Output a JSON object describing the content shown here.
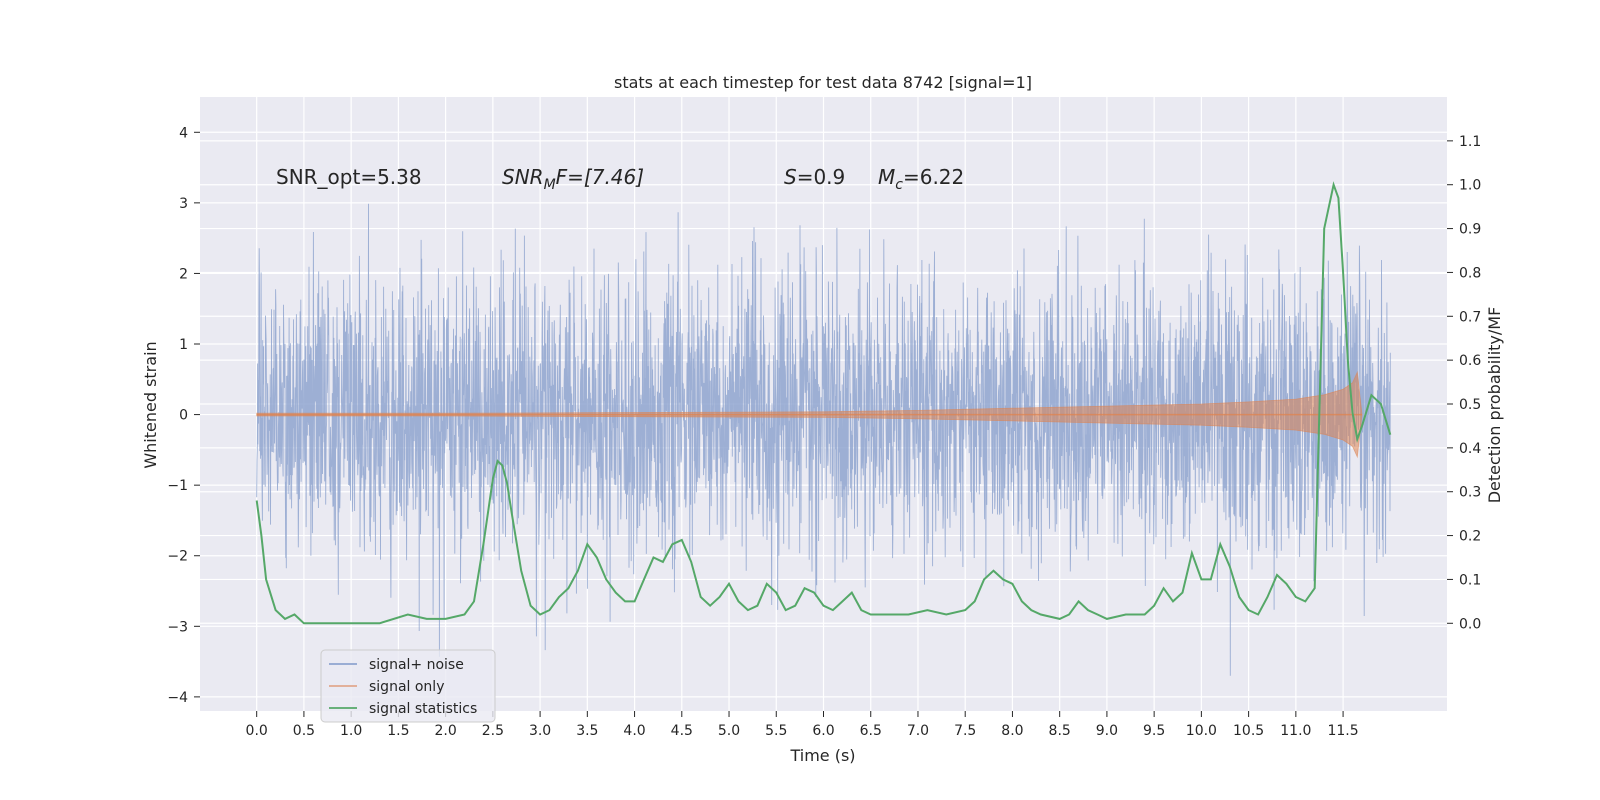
{
  "chart_data": {
    "type": "line",
    "title": "stats at each timestep for test data 8742 [signal=1]",
    "xlabel": "Time (s)",
    "ylabel_left": "Whitened strain",
    "ylabel_right": "Detection probability/MF",
    "xlim": [
      -0.6,
      12.6
    ],
    "ylim_left": [
      -4.2,
      4.5
    ],
    "ylim_right": [
      -0.2,
      1.2
    ],
    "x_ticks": [
      0.0,
      0.5,
      1.0,
      1.5,
      2.0,
      2.5,
      3.0,
      3.5,
      4.0,
      4.5,
      5.0,
      5.5,
      6.0,
      6.5,
      7.0,
      7.5,
      8.0,
      8.5,
      9.0,
      9.5,
      10.0,
      10.5,
      11.0,
      11.5
    ],
    "x_tick_labels": [
      "0.0",
      "0.5",
      "1.0",
      "1.5",
      "2.0",
      "2.5",
      "3.0",
      "3.5",
      "4.0",
      "4.5",
      "5.0",
      "5.5",
      "6.0",
      "6.5",
      "7.0",
      "7.5",
      "8.0",
      "8.5",
      "9.0",
      "9.5",
      "10.0",
      "10.5",
      "11.0",
      "11.5"
    ],
    "y_left_ticks": [
      4,
      3,
      2,
      1,
      0,
      -1,
      -2,
      -3,
      -4
    ],
    "y_left_tick_labels": [
      "4",
      "3",
      "2",
      "1",
      "0",
      "−1",
      "−2",
      "−3",
      "−4"
    ],
    "y_right_ticks": [
      1.1,
      1.0,
      0.9,
      0.8,
      0.7,
      0.6,
      0.5,
      0.4,
      0.3,
      0.2,
      0.1,
      0.0
    ],
    "y_right_tick_labels": [
      "1.1",
      "1.0",
      "0.9",
      "0.8",
      "0.7",
      "0.6",
      "0.5",
      "0.4",
      "0.3",
      "0.2",
      "0.1",
      "0.0"
    ],
    "annotations": {
      "snr_opt": "SNR_opt=5.38",
      "snr_mf_main": "SNR",
      "snr_mf_sub": "M",
      "snr_mf_rest": "F=[7.46]",
      "s_main": "S",
      "s_rest": "=0.9",
      "mc_main": "M",
      "mc_sub": "c",
      "mc_rest": "=6.22"
    },
    "legend": [
      {
        "label": "signal+ noise",
        "color": "#8fa4cf"
      },
      {
        "label": "signal only",
        "color": "#e0a78d"
      },
      {
        "label": "signal statistics",
        "color": "#55a868"
      }
    ],
    "series": [
      {
        "name": "signal statistics",
        "axis": "right",
        "color": "#55a868",
        "x": [
          0.0,
          0.05,
          0.1,
          0.2,
          0.3,
          0.4,
          0.5,
          0.7,
          1.0,
          1.3,
          1.6,
          1.8,
          2.0,
          2.2,
          2.3,
          2.4,
          2.5,
          2.55,
          2.6,
          2.65,
          2.7,
          2.8,
          2.9,
          3.0,
          3.1,
          3.2,
          3.3,
          3.4,
          3.5,
          3.6,
          3.7,
          3.8,
          3.9,
          4.0,
          4.1,
          4.2,
          4.3,
          4.4,
          4.5,
          4.6,
          4.7,
          4.8,
          4.9,
          5.0,
          5.1,
          5.2,
          5.3,
          5.4,
          5.5,
          5.6,
          5.7,
          5.8,
          5.9,
          6.0,
          6.1,
          6.2,
          6.3,
          6.4,
          6.5,
          6.7,
          6.9,
          7.1,
          7.3,
          7.5,
          7.6,
          7.7,
          7.8,
          7.9,
          8.0,
          8.1,
          8.2,
          8.3,
          8.5,
          8.6,
          8.7,
          8.8,
          8.9,
          9.0,
          9.2,
          9.4,
          9.5,
          9.6,
          9.7,
          9.8,
          9.9,
          10.0,
          10.1,
          10.2,
          10.3,
          10.4,
          10.5,
          10.6,
          10.7,
          10.8,
          10.9,
          11.0,
          11.1,
          11.2,
          11.3,
          11.4,
          11.45,
          11.5,
          11.55,
          11.6,
          11.65,
          11.7,
          11.8,
          11.9,
          12.0
        ],
        "y": [
          0.28,
          0.2,
          0.1,
          0.03,
          0.01,
          0.02,
          0.0,
          0.0,
          0.0,
          0.0,
          0.02,
          0.01,
          0.01,
          0.02,
          0.05,
          0.18,
          0.33,
          0.37,
          0.36,
          0.32,
          0.25,
          0.12,
          0.04,
          0.02,
          0.03,
          0.06,
          0.08,
          0.12,
          0.18,
          0.15,
          0.1,
          0.07,
          0.05,
          0.05,
          0.1,
          0.15,
          0.14,
          0.18,
          0.19,
          0.14,
          0.06,
          0.04,
          0.06,
          0.09,
          0.05,
          0.03,
          0.04,
          0.09,
          0.07,
          0.03,
          0.04,
          0.08,
          0.07,
          0.04,
          0.03,
          0.05,
          0.07,
          0.03,
          0.02,
          0.02,
          0.02,
          0.03,
          0.02,
          0.03,
          0.05,
          0.1,
          0.12,
          0.1,
          0.09,
          0.05,
          0.03,
          0.02,
          0.01,
          0.02,
          0.05,
          0.03,
          0.02,
          0.01,
          0.02,
          0.02,
          0.04,
          0.08,
          0.05,
          0.07,
          0.16,
          0.1,
          0.1,
          0.18,
          0.13,
          0.06,
          0.03,
          0.02,
          0.06,
          0.11,
          0.09,
          0.06,
          0.05,
          0.08,
          0.9,
          1.0,
          0.97,
          0.8,
          0.6,
          0.48,
          0.42,
          0.45,
          0.52,
          0.5,
          0.43
        ]
      },
      {
        "name": "signal only",
        "axis": "left",
        "color": "#dd8452",
        "description_envelope": "chirp amplitude",
        "x": [
          0.0,
          2.0,
          4.0,
          6.0,
          7.0,
          8.0,
          9.0,
          10.0,
          10.5,
          11.0,
          11.3,
          11.5,
          11.6,
          11.65,
          11.7
        ],
        "envelope": [
          0.02,
          0.02,
          0.03,
          0.04,
          0.06,
          0.09,
          0.12,
          0.15,
          0.18,
          0.22,
          0.28,
          0.36,
          0.45,
          0.6,
          0.0
        ]
      },
      {
        "name": "signal+ noise",
        "axis": "left",
        "color": "#8fa4cf",
        "x_range": [
          0.0,
          12.0
        ],
        "sigma": 0.95,
        "max_abs": 4.1
      }
    ]
  }
}
